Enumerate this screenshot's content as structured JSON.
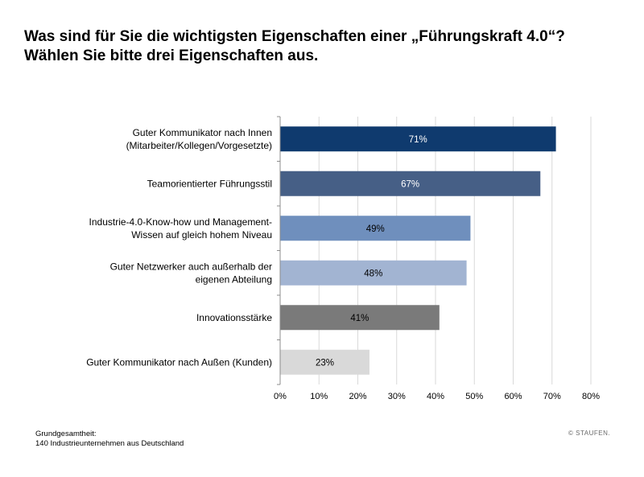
{
  "title": "Was sind für Sie die wichtigsten Eigenschaften einer „Führungskraft 4.0“? Wählen Sie bitte drei Eigenschaften aus.",
  "chart_data": {
    "type": "bar",
    "orientation": "horizontal",
    "categories": [
      [
        "Guter Kommunikator nach Innen",
        "(Mitarbeiter/Kollegen/Vorgesetzte)"
      ],
      [
        "Teamorientierter Führungsstil"
      ],
      [
        "Industrie-4.0-Know-how und Management-",
        "Wissen auf gleich hohem Niveau"
      ],
      [
        "Guter Netzwerker auch außerhalb der",
        "eigenen Abteilung"
      ],
      [
        "Innovationsstärke"
      ],
      [
        "Guter Kommunikator nach Außen (Kunden)"
      ]
    ],
    "values": [
      71,
      67,
      49,
      48,
      41,
      23
    ],
    "data_labels": [
      "71%",
      "67%",
      "49%",
      "48%",
      "41%",
      "23%"
    ],
    "bar_colors": [
      "#0f3a6e",
      "#465f86",
      "#6f8fbd",
      "#a2b4d2",
      "#7a7a7a",
      "#d9d9d9"
    ],
    "label_colors": [
      "#ffffff",
      "#ffffff",
      "#000000",
      "#000000",
      "#000000",
      "#000000"
    ],
    "xlim": [
      0,
      80
    ],
    "xticks": [
      0,
      10,
      20,
      30,
      40,
      50,
      60,
      70,
      80
    ],
    "xtick_labels": [
      "0%",
      "10%",
      "20%",
      "30%",
      "40%",
      "50%",
      "60%",
      "70%",
      "80%"
    ],
    "grid": true,
    "legend": "none"
  },
  "footnote": {
    "line1": "Grundgesamtheit:",
    "line2": "140 Industrieunternehmen aus Deutschland"
  },
  "brand": "© STAUFEN."
}
